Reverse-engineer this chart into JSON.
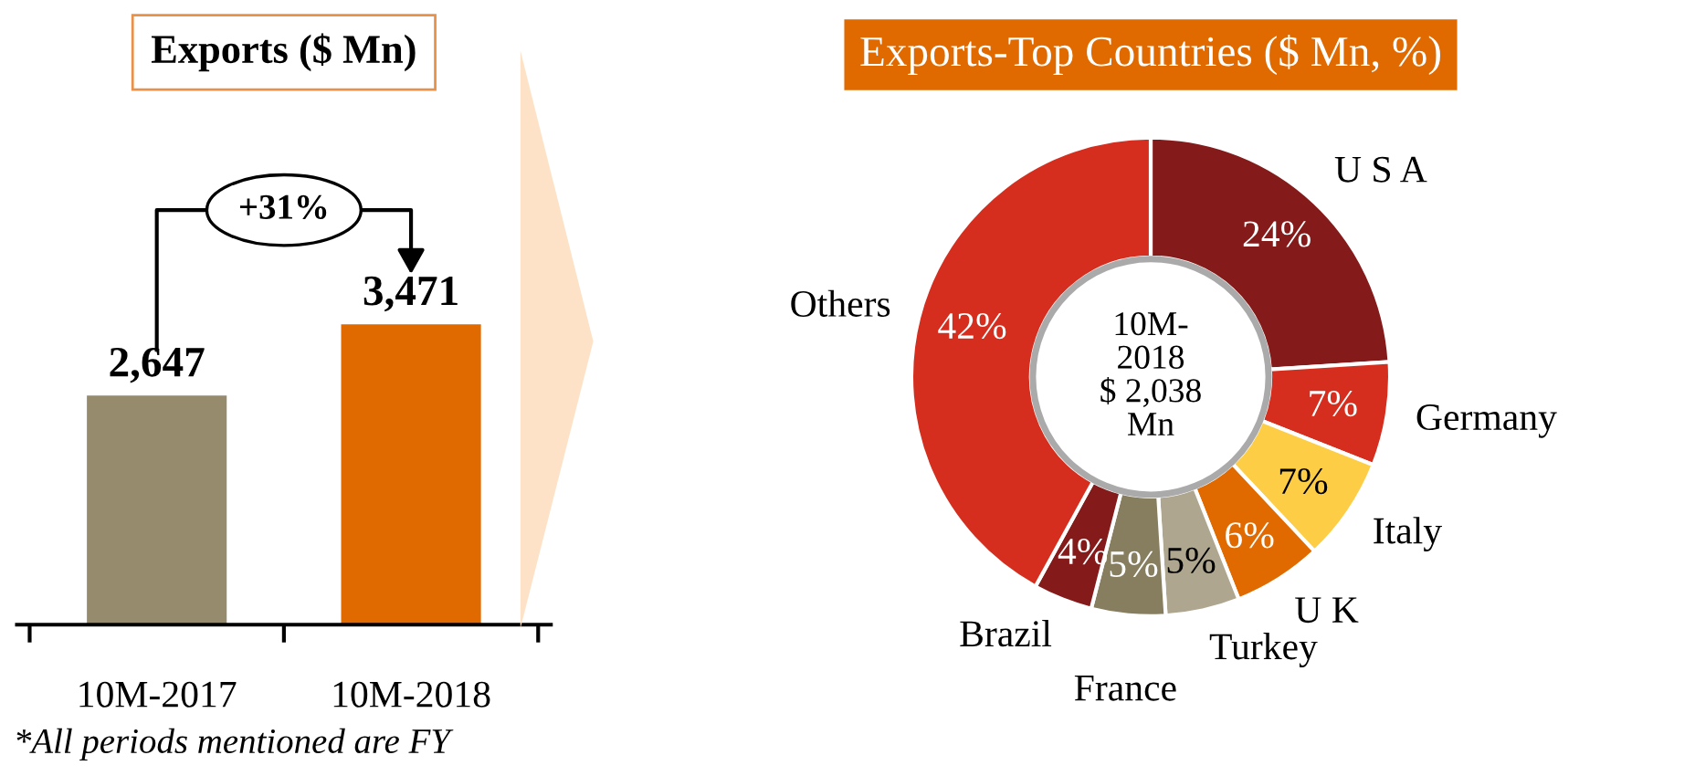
{
  "chart_data": [
    {
      "type": "bar",
      "title": "Exports ($ Mn)",
      "categories": [
        "10M-2017",
        "10M-2018"
      ],
      "values": [
        2647,
        3471
      ],
      "colors": [
        "#978b6d",
        "#e06a00"
      ],
      "value_labels": [
        "2,647",
        "3,471"
      ],
      "tick_labels": "x",
      "annotations": [
        "+31%",
        "*All periods mentioned are FY"
      ]
    },
    {
      "type": "donut",
      "title": "Exports-Top Countries ($ Mn, %)",
      "categories": [
        "U S A",
        "Germany",
        "Italy",
        "U K",
        "Turkey",
        "France",
        "Brazil",
        "Others"
      ],
      "values": [
        24,
        7,
        7,
        6,
        5,
        5,
        4,
        42
      ],
      "colors": [
        "#841a1a",
        "#d52e1e",
        "#fdcd45",
        "#e06a00",
        "#aea68f",
        "#877d5f",
        "#841a1a",
        "#d52e1e"
      ],
      "value_labels": [
        "24%",
        "7%",
        "7%",
        "6%",
        "5%",
        "5%",
        "4%",
        "42%"
      ],
      "annotations": [
        "10M-\n2018\n$ 2,038\nMn"
      ]
    }
  ]
}
